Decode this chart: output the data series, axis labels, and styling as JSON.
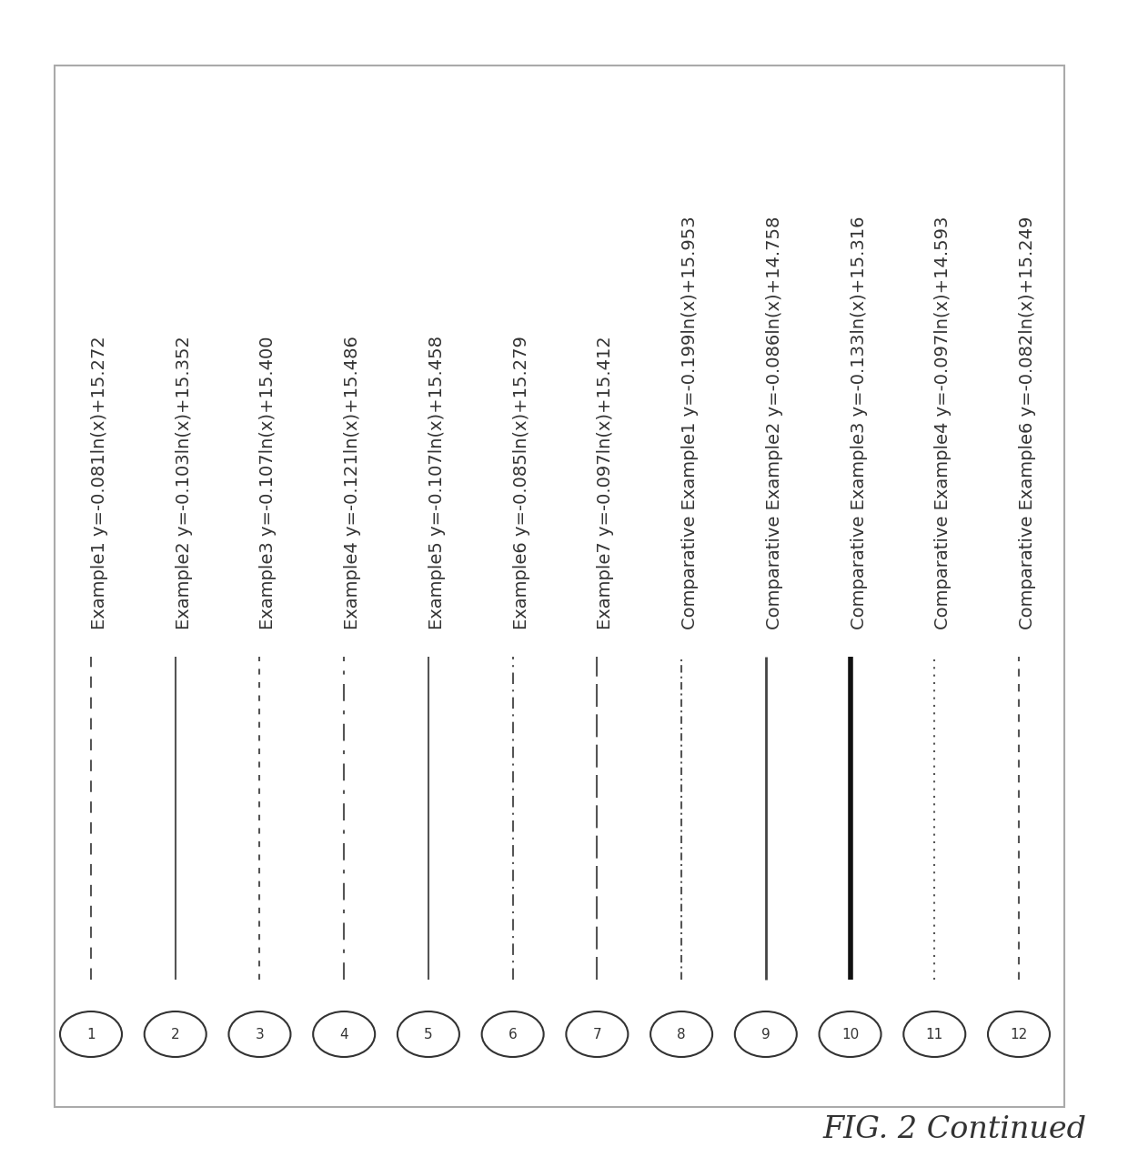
{
  "title": "FIG. 2 Continued",
  "entries": [
    {
      "num": 1,
      "label": "Example1 y=-0.081ln(x)+15.272",
      "linestyle": "solid",
      "linewidth": 1.5,
      "color": "#555555",
      "dash": [
        6,
        5
      ]
    },
    {
      "num": 2,
      "label": "Example2 y=-0.103ln(x)+15.352",
      "linestyle": "solid",
      "linewidth": 1.5,
      "color": "#555555",
      "dash": null
    },
    {
      "num": 3,
      "label": "Example3 y=-0.107ln(x)+15.400",
      "linestyle": "solid",
      "linewidth": 1.5,
      "color": "#555555",
      "dash": [
        3,
        4
      ]
    },
    {
      "num": 4,
      "label": "Example4 y=-0.121ln(x)+15.486",
      "linestyle": "solid",
      "linewidth": 1.5,
      "color": "#555555",
      "dash": [
        9,
        5,
        2,
        5
      ]
    },
    {
      "num": 5,
      "label": "Example5 y=-0.107ln(x)+15.458",
      "linestyle": "solid",
      "linewidth": 1.5,
      "color": "#555555",
      "dash": null
    },
    {
      "num": 6,
      "label": "Example6 y=-0.085ln(x)+15.279",
      "linestyle": "solid",
      "linewidth": 1.5,
      "color": "#555555",
      "dash": [
        6,
        3,
        1,
        3
      ]
    },
    {
      "num": 7,
      "label": "Example7 y=-0.097ln(x)+15.412",
      "linestyle": "solid",
      "linewidth": 1.5,
      "color": "#555555",
      "dash": [
        12,
        4
      ]
    },
    {
      "num": 8,
      "label": "Comparative Example1 y=-0.199ln(x)+15.953",
      "linestyle": "solid",
      "linewidth": 1.5,
      "color": "#555555",
      "dash": [
        4,
        2,
        1,
        2
      ]
    },
    {
      "num": 9,
      "label": "Comparative Example2 y=-0.086ln(x)+14.758",
      "linestyle": "solid",
      "linewidth": 2.0,
      "color": "#444444",
      "dash": null
    },
    {
      "num": 10,
      "label": "Comparative Example3 y=-0.133ln(x)+15.316",
      "linestyle": "solid",
      "linewidth": 4.0,
      "color": "#111111",
      "dash": null
    },
    {
      "num": 11,
      "label": "Comparative Example4 y=-0.097ln(x)+14.593",
      "linestyle": "solid",
      "linewidth": 1.5,
      "color": "#555555",
      "dash": [
        1,
        3
      ]
    },
    {
      "num": 12,
      "label": "Comparative Example6 y=-0.082ln(x)+15.249",
      "linestyle": "solid",
      "linewidth": 1.5,
      "color": "#555555",
      "dash": [
        4,
        4
      ]
    }
  ],
  "background_color": "#ffffff",
  "border_color": "#aaaaaa",
  "text_color": "#333333",
  "font_size": 14,
  "title_font_size": 24
}
